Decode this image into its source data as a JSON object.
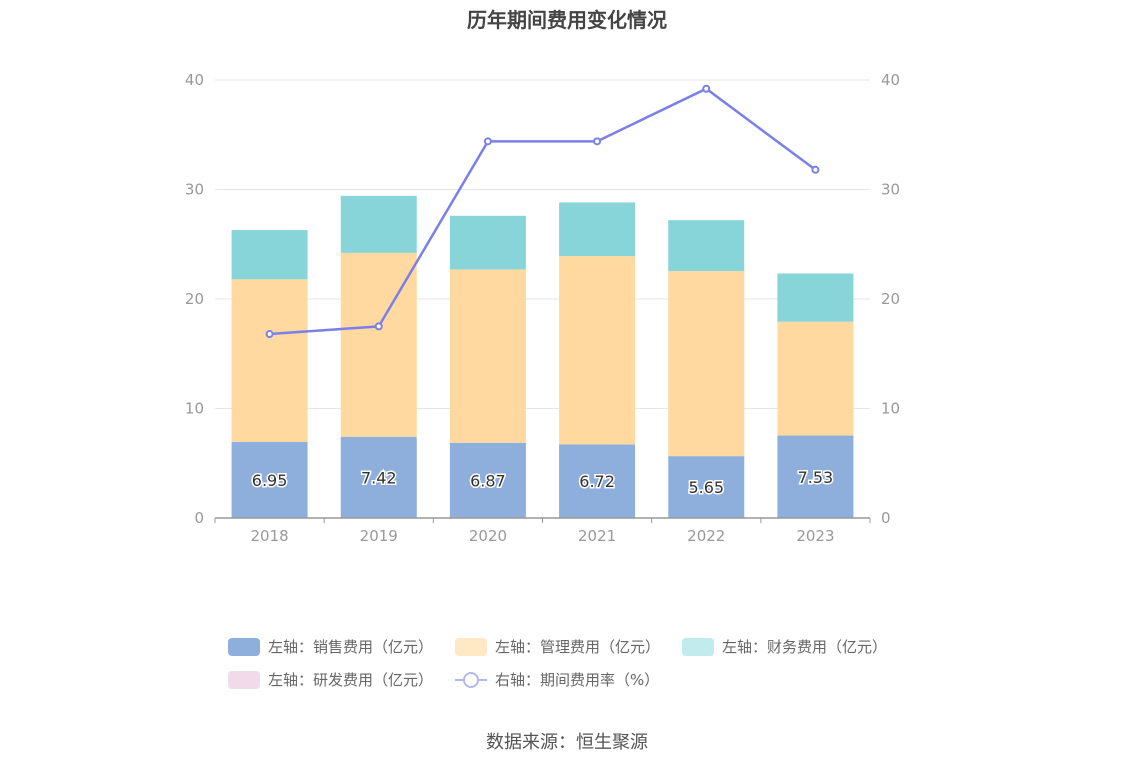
{
  "chart_data": {
    "type": "bar",
    "title": "历年期间费用变化情况",
    "categories": [
      "2018",
      "2019",
      "2020",
      "2021",
      "2022",
      "2023"
    ],
    "stacked": true,
    "left_axis": {
      "ylim": [
        0,
        40
      ],
      "ticks": [
        0,
        10,
        20,
        30,
        40
      ]
    },
    "right_axis": {
      "ylim": [
        0,
        40
      ],
      "ticks": [
        0,
        10,
        20,
        30,
        40
      ]
    },
    "grid": true,
    "legend_position": "bottom",
    "series": [
      {
        "name": "左轴：销售费用（亿元）",
        "type": "bar",
        "axis": "left",
        "color": "#8eaedb",
        "values": [
          6.95,
          7.42,
          6.87,
          6.72,
          5.65,
          7.53
        ],
        "labels": [
          "6.95",
          "7.42",
          "6.87",
          "6.72",
          "5.65",
          "7.53"
        ]
      },
      {
        "name": "左轴：管理费用（亿元）",
        "type": "bar",
        "axis": "left",
        "color": "#ffd99f",
        "values": [
          14.85,
          16.8,
          15.83,
          17.2,
          16.9,
          10.4
        ]
      },
      {
        "name": "左轴：财务费用（亿元）",
        "type": "bar",
        "axis": "left",
        "color": "#88d5d9",
        "values": [
          4.5,
          5.2,
          4.9,
          4.9,
          4.65,
          4.4
        ]
      },
      {
        "name": "左轴：研发费用（亿元）",
        "type": "bar",
        "axis": "left",
        "color": "#f2dbe9",
        "values": [
          0,
          0,
          0,
          0,
          0,
          0
        ]
      },
      {
        "name": "右轴：期间费用率（%）",
        "type": "line",
        "axis": "right",
        "color": "#7b7fe8",
        "values": [
          16.8,
          17.5,
          34.4,
          34.4,
          39.2,
          31.8
        ]
      }
    ]
  },
  "legend": {
    "row1": [
      "左轴：销售费用（亿元）",
      "左轴：管理费用（亿元）",
      "左轴：财务费用（亿元）"
    ],
    "row2": [
      "左轴：研发费用（亿元）",
      "右轴：期间费用率（%）"
    ]
  },
  "source": "数据来源：恒生聚源"
}
